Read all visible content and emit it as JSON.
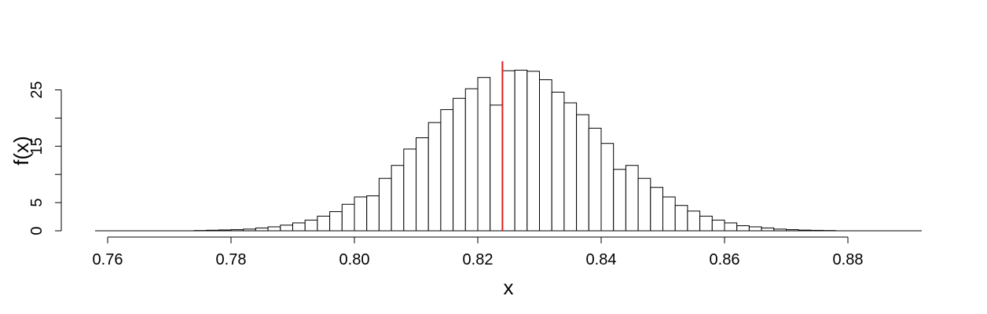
{
  "chart_data": {
    "type": "bar",
    "title": "",
    "xlabel": "x",
    "ylabel": "f(x)",
    "xlim": [
      0.7575,
      0.8919
    ],
    "ylim": [
      0,
      29
    ],
    "bin_width": 0.002,
    "bin_start": 0.774,
    "values": [
      0.05,
      0.1,
      0.15,
      0.2,
      0.3,
      0.5,
      0.7,
      1.0,
      1.4,
      1.9,
      2.6,
      3.4,
      4.7,
      6.0,
      6.2,
      9.3,
      11.6,
      14.5,
      16.5,
      19.2,
      21.5,
      23.5,
      25.2,
      27.2,
      22.3,
      28.4,
      28.5,
      28.3,
      26.8,
      24.6,
      22.7,
      20.6,
      18.2,
      15.5,
      10.9,
      11.6,
      9.3,
      7.7,
      6.0,
      4.5,
      3.5,
      2.6,
      1.9,
      1.4,
      0.9,
      0.7,
      0.5,
      0.3,
      0.2,
      0.12,
      0.08,
      0.05
    ],
    "x_ticks": [
      "0.76",
      "0.78",
      "0.80",
      "0.82",
      "0.84",
      "0.86",
      "0.88"
    ],
    "x_tick_values": [
      0.76,
      0.78,
      0.8,
      0.82,
      0.84,
      0.86,
      0.88
    ],
    "y_ticks": [
      "0",
      "5",
      "15",
      "25"
    ],
    "y_tick_values": [
      0,
      5,
      15,
      25
    ],
    "y_minor_tick_values": [
      10,
      20
    ],
    "vline": {
      "x": 0.824,
      "color": "#e41a1c"
    },
    "grid": false,
    "legend": "none"
  }
}
